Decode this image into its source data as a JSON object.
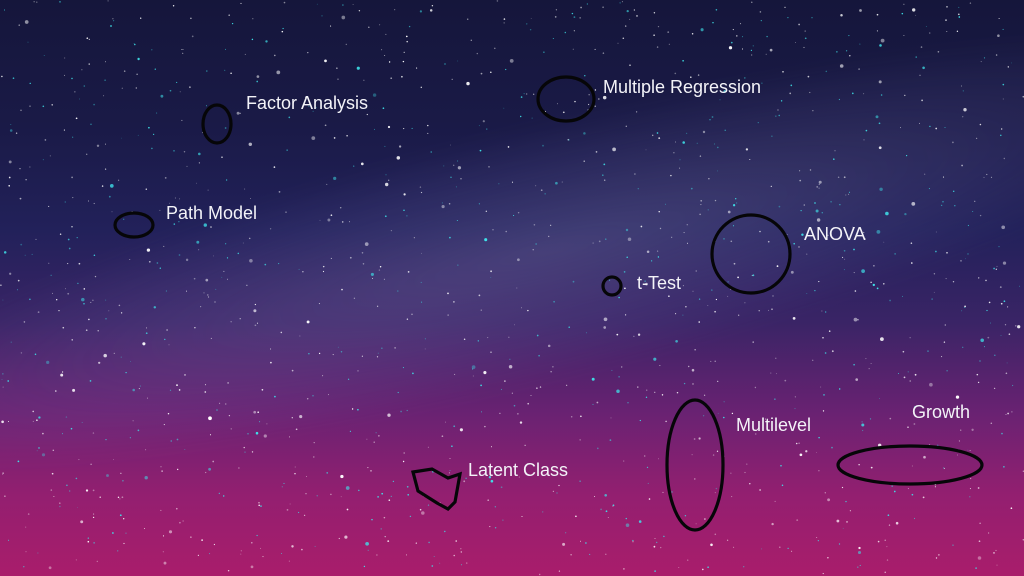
{
  "labels": {
    "factor_analysis": "Factor Analysis",
    "multiple_regression": "Multiple Regression",
    "path_model": "Path Model",
    "anova": "ANOVA",
    "t_test": "t-Test",
    "multilevel": "Multilevel",
    "growth": "Growth",
    "latent_class": "Latent Class"
  },
  "colors": {
    "sky_top": "#15163b",
    "sky_bottom": "#a91d6b",
    "outline": "#060608",
    "label_text": "#f3f3f8",
    "star_cyan": "#3fe3ea",
    "star_white": "#ffffff"
  }
}
